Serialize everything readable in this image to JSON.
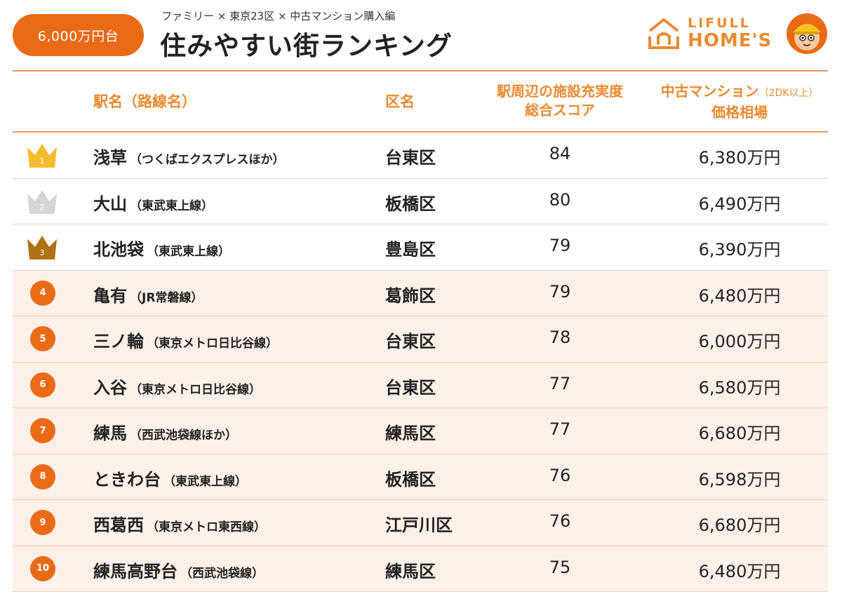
{
  "header": {
    "price_badge": "6,000万円台",
    "subtitle": "ファミリー × 東京23区 × 中古マンション購入編",
    "title": "住みやすい街ランキング",
    "logo_top": "LIFULL",
    "logo_bottom": "HOME'S"
  },
  "columns": {
    "station": "駅名（路線名）",
    "ward": "区名",
    "score_line1": "駅周辺の施設充実度",
    "score_line2": "総合スコア",
    "price_line1": "中古マンション",
    "price_note": "（2DK以上）",
    "price_line2": "価格相場"
  },
  "colors": {
    "accent": "#ea6a16",
    "header_text": "#ea8a2e",
    "gold": "#f9bc2e",
    "silver": "#d6d6d6",
    "bronze": "#b07212",
    "row_tint": "#fdf0e8"
  },
  "rows": [
    {
      "rank": "1",
      "station": "浅草",
      "line": "（つくばエクスプレスほか）",
      "ward": "台東区",
      "score": "84",
      "price": "6,380万円",
      "icon": "crown-gold-icon"
    },
    {
      "rank": "2",
      "station": "大山",
      "line": "（東武東上線）",
      "ward": "板橋区",
      "score": "80",
      "price": "6,490万円",
      "icon": "crown-silver-icon"
    },
    {
      "rank": "3",
      "station": "北池袋",
      "line": "（東武東上線）",
      "ward": "豊島区",
      "score": "79",
      "price": "6,390万円",
      "icon": "crown-bronze-icon"
    },
    {
      "rank": "4",
      "station": "亀有",
      "line": "（JR常磐線）",
      "ward": "葛飾区",
      "score": "79",
      "price": "6,480万円"
    },
    {
      "rank": "5",
      "station": "三ノ輪",
      "line": "（東京メトロ日比谷線）",
      "ward": "台東区",
      "score": "78",
      "price": "6,000万円"
    },
    {
      "rank": "6",
      "station": "入谷",
      "line": "（東京メトロ日比谷線）",
      "ward": "台東区",
      "score": "77",
      "price": "6,580万円"
    },
    {
      "rank": "7",
      "station": "練馬",
      "line": "（西武池袋線ほか）",
      "ward": "練馬区",
      "score": "77",
      "price": "6,680万円"
    },
    {
      "rank": "8",
      "station": "ときわ台",
      "line": "（東武東上線）",
      "ward": "板橋区",
      "score": "76",
      "price": "6,598万円"
    },
    {
      "rank": "9",
      "station": "西葛西",
      "line": "（東京メトロ東西線）",
      "ward": "江戸川区",
      "score": "76",
      "price": "6,680万円"
    },
    {
      "rank": "10",
      "station": "練馬高野台",
      "line": "（西武池袋線）",
      "ward": "練馬区",
      "score": "75",
      "price": "6,480万円"
    }
  ]
}
